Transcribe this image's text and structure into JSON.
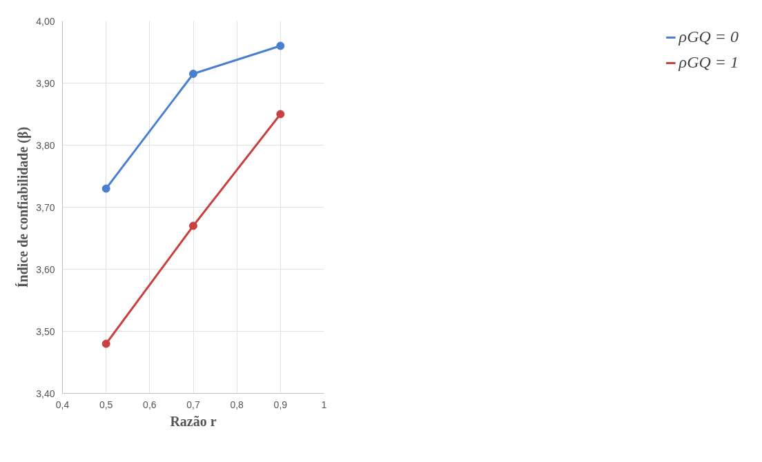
{
  "chart_data": {
    "type": "line",
    "xlabel": "Razão r",
    "ylabel": "Índice de confiabilidade (β)",
    "x": [
      0.5,
      0.7,
      0.9
    ],
    "series": [
      {
        "name": "ρGQ = 0",
        "color": "#4a7fd0",
        "values": [
          3.73,
          3.915,
          3.96
        ]
      },
      {
        "name": "ρGQ = 1",
        "color": "#c94040",
        "values": [
          3.48,
          3.67,
          3.85
        ]
      }
    ],
    "xlim": [
      0.4,
      1.0
    ],
    "xticks": [
      {
        "value": 0.4,
        "label": "0,4"
      },
      {
        "value": 0.5,
        "label": "0,5"
      },
      {
        "value": 0.6,
        "label": "0,6"
      },
      {
        "value": 0.7,
        "label": "0,7"
      },
      {
        "value": 0.8,
        "label": "0,8"
      },
      {
        "value": 0.9,
        "label": "0,9"
      },
      1
    ],
    "ylim": [
      3.4,
      4.0
    ],
    "yticks": [
      {
        "value": 3.4,
        "label": "3,40"
      },
      {
        "value": 3.5,
        "label": "3,50"
      },
      {
        "value": 3.6,
        "label": "3,60"
      },
      {
        "value": 3.7,
        "label": "3,70"
      },
      {
        "value": 3.8,
        "label": "3,80"
      },
      {
        "value": 3.9,
        "label": "3,90"
      },
      {
        "value": 4.0,
        "label": "4,00"
      }
    ],
    "grid": true,
    "legend": "top right",
    "marker": "circle",
    "line_style": "solid"
  }
}
